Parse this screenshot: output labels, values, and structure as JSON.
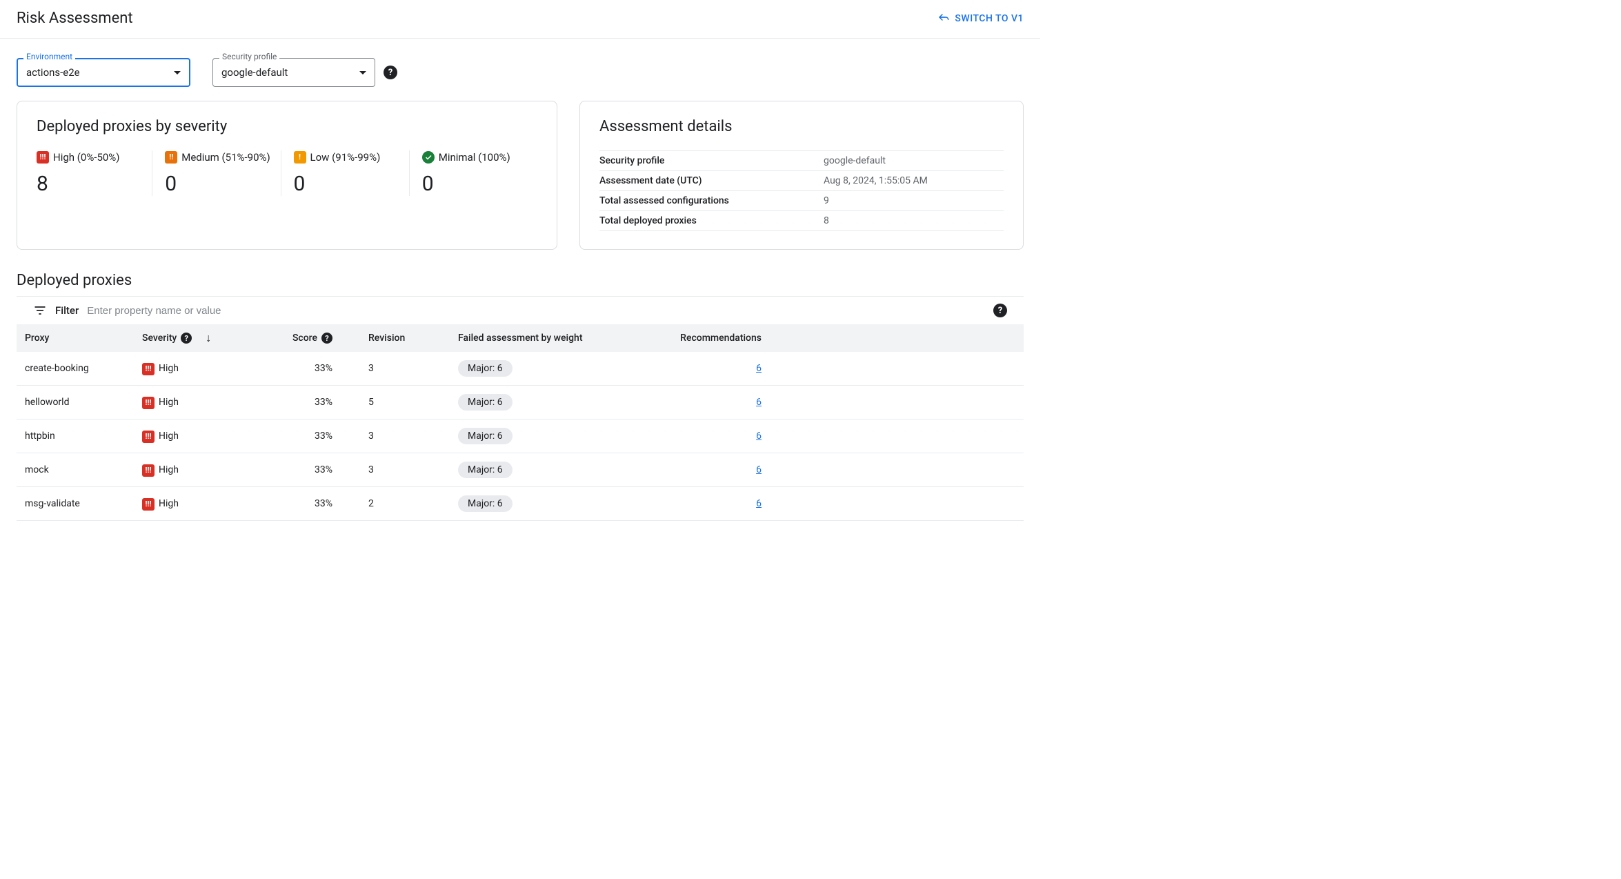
{
  "header": {
    "title": "Risk Assessment",
    "switch_label": "SWITCH TO V1"
  },
  "filters": {
    "environment": {
      "label": "Environment",
      "value": "actions-e2e"
    },
    "security_profile": {
      "label": "Security profile",
      "value": "google-default"
    }
  },
  "severity_card": {
    "title": "Deployed proxies by severity",
    "items": [
      {
        "key": "high",
        "label": "High (0%-50%)",
        "count": "8",
        "color": "#d93025",
        "glyph": "!!!"
      },
      {
        "key": "medium",
        "label": "Medium (51%-90%)",
        "count": "0",
        "color": "#e8710a",
        "glyph": "!!"
      },
      {
        "key": "low",
        "label": "Low (91%-99%)",
        "count": "0",
        "color": "#f29900",
        "glyph": "!"
      },
      {
        "key": "minimal",
        "label": "Minimal (100%)",
        "count": "0",
        "color": "#188038",
        "glyph": "check"
      }
    ]
  },
  "details_card": {
    "title": "Assessment details",
    "rows": [
      {
        "label": "Security profile",
        "value": "google-default"
      },
      {
        "label": "Assessment date (UTC)",
        "value": "Aug 8, 2024, 1:55:05 AM"
      },
      {
        "label": "Total assessed configurations",
        "value": "9"
      },
      {
        "label": "Total deployed proxies",
        "value": "8"
      }
    ]
  },
  "table": {
    "section_title": "Deployed proxies",
    "filter_label": "Filter",
    "filter_placeholder": "Enter property name or value",
    "columns": {
      "proxy": "Proxy",
      "severity": "Severity",
      "score": "Score",
      "revision": "Revision",
      "failed": "Failed assessment by weight",
      "recommendations": "Recommendations"
    },
    "rows": [
      {
        "proxy": "create-booking",
        "severity": "High",
        "score": "33%",
        "revision": "3",
        "failed": "Major: 6",
        "recommendations": "6"
      },
      {
        "proxy": "helloworld",
        "severity": "High",
        "score": "33%",
        "revision": "5",
        "failed": "Major: 6",
        "recommendations": "6"
      },
      {
        "proxy": "httpbin",
        "severity": "High",
        "score": "33%",
        "revision": "3",
        "failed": "Major: 6",
        "recommendations": "6"
      },
      {
        "proxy": "mock",
        "severity": "High",
        "score": "33%",
        "revision": "3",
        "failed": "Major: 6",
        "recommendations": "6"
      },
      {
        "proxy": "msg-validate",
        "severity": "High",
        "score": "33%",
        "revision": "2",
        "failed": "Major: 6",
        "recommendations": "6"
      }
    ]
  },
  "colors": {
    "accent": "#1a73e8",
    "border": "#dadce0",
    "text_secondary": "#5f6368",
    "chip_bg": "#e8eaed",
    "table_header_bg": "#f1f3f4"
  }
}
